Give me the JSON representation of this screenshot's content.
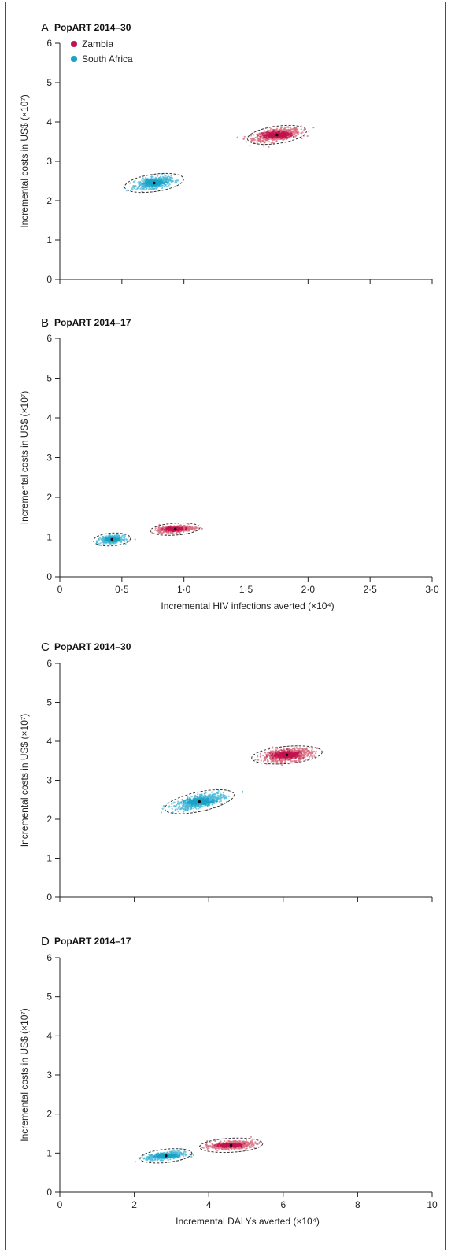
{
  "colors": {
    "frame": "#c0124e",
    "zambia": "#c2134f",
    "zambia_cloud": "#d86e80",
    "south_africa": "#1aa3c6",
    "south_africa_cloud": "#4cb9d8",
    "axis": "#222222"
  },
  "legend": {
    "zambia": "Zambia",
    "south_africa": "South Africa"
  },
  "chart_data": [
    {
      "type": "scatter",
      "panel": "A",
      "title": "PopART 2014–30",
      "ylabel": "Incremental costs in US$ (×10⁷)",
      "xlabel": "",
      "xlim": [
        0,
        3.0
      ],
      "ylim": [
        0,
        6
      ],
      "xticks": [
        0,
        0.5,
        1.0,
        1.5,
        2.0,
        2.5,
        3.0
      ],
      "xtick_labels": [],
      "yticks": [
        0,
        1,
        2,
        3,
        4,
        5,
        6
      ],
      "ytick_labels": [
        "0",
        "1",
        "2",
        "3",
        "4",
        "5",
        "6"
      ],
      "legend_position": "top-left",
      "series": [
        {
          "name": "Zambia",
          "colorKey": "zambia",
          "mean": [
            1.75,
            3.67
          ],
          "ellipse": {
            "rx": 0.24,
            "ry": 0.22,
            "angle": 8
          },
          "spread": [
            0.17,
            0.13
          ],
          "count": 700
        },
        {
          "name": "South Africa",
          "colorKey": "south_africa",
          "mean": [
            0.76,
            2.45
          ],
          "ellipse": {
            "rx": 0.24,
            "ry": 0.22,
            "angle": 8
          },
          "spread": [
            0.12,
            0.12
          ],
          "count": 600
        }
      ]
    },
    {
      "type": "scatter",
      "panel": "B",
      "title": "PopART 2014–17",
      "ylabel": "Incremental costs in US$ (×10⁷)",
      "xlabel": "Incremental HIV infections averted (×10⁴)",
      "xlim": [
        0,
        3.0
      ],
      "ylim": [
        0,
        6
      ],
      "xticks": [
        0,
        0.5,
        1.0,
        1.5,
        2.0,
        2.5,
        3.0
      ],
      "xtick_labels": [
        "0",
        "0·5",
        "1·0",
        "1·5",
        "2·0",
        "2·5",
        "3·0"
      ],
      "yticks": [
        0,
        1,
        2,
        3,
        4,
        5,
        6
      ],
      "ytick_labels": [
        "0",
        "1",
        "2",
        "3",
        "4",
        "5",
        "6"
      ],
      "series": [
        {
          "name": "Zambia",
          "colorKey": "zambia",
          "mean": [
            0.93,
            1.2
          ],
          "ellipse": {
            "rx": 0.2,
            "ry": 0.15,
            "angle": 4
          },
          "spread": [
            0.12,
            0.07
          ],
          "count": 600
        },
        {
          "name": "South Africa",
          "colorKey": "south_africa",
          "mean": [
            0.42,
            0.94
          ],
          "ellipse": {
            "rx": 0.15,
            "ry": 0.16,
            "angle": 4
          },
          "spread": [
            0.08,
            0.08
          ],
          "count": 500
        }
      ]
    },
    {
      "type": "scatter",
      "panel": "C",
      "title": "PopART 2014–30",
      "ylabel": "Incremental costs in US$ (×10⁷)",
      "xlabel": "",
      "xlim": [
        0,
        10
      ],
      "ylim": [
        0,
        6
      ],
      "xticks": [
        0,
        2,
        4,
        6,
        8,
        10
      ],
      "xtick_labels": [],
      "yticks": [
        0,
        1,
        2,
        3,
        4,
        5,
        6
      ],
      "ytick_labels": [
        "0",
        "1",
        "2",
        "3",
        "4",
        "5",
        "6"
      ],
      "series": [
        {
          "name": "Zambia",
          "colorKey": "zambia",
          "mean": [
            6.1,
            3.65
          ],
          "ellipse": {
            "rx": 0.95,
            "ry": 0.22,
            "angle": 5
          },
          "spread": [
            0.6,
            0.14
          ],
          "count": 700
        },
        {
          "name": "South Africa",
          "colorKey": "south_africa",
          "mean": [
            3.75,
            2.45
          ],
          "ellipse": {
            "rx": 0.95,
            "ry": 0.25,
            "angle": 12
          },
          "spread": [
            0.6,
            0.14
          ],
          "count": 650
        }
      ]
    },
    {
      "type": "scatter",
      "panel": "D",
      "title": "PopART 2014–17",
      "ylabel": "Incremental costs in US$ (×10⁷)",
      "xlabel": "Incremental DALYs averted (×10⁴)",
      "xlim": [
        0,
        10
      ],
      "ylim": [
        0,
        6
      ],
      "xticks": [
        0,
        2,
        4,
        6,
        8,
        10
      ],
      "xtick_labels": [
        "0",
        "2",
        "4",
        "6",
        "8",
        "10"
      ],
      "yticks": [
        0,
        1,
        2,
        3,
        4,
        5,
        6
      ],
      "ytick_labels": [
        "0",
        "1",
        "2",
        "3",
        "4",
        "5",
        "6"
      ],
      "series": [
        {
          "name": "Zambia",
          "colorKey": "zambia",
          "mean": [
            4.6,
            1.2
          ],
          "ellipse": {
            "rx": 0.85,
            "ry": 0.18,
            "angle": 3
          },
          "spread": [
            0.5,
            0.08
          ],
          "count": 600
        },
        {
          "name": "South Africa",
          "colorKey": "south_africa",
          "mean": [
            2.85,
            0.93
          ],
          "ellipse": {
            "rx": 0.7,
            "ry": 0.17,
            "angle": 6
          },
          "spread": [
            0.45,
            0.08
          ],
          "count": 500
        }
      ]
    }
  ]
}
